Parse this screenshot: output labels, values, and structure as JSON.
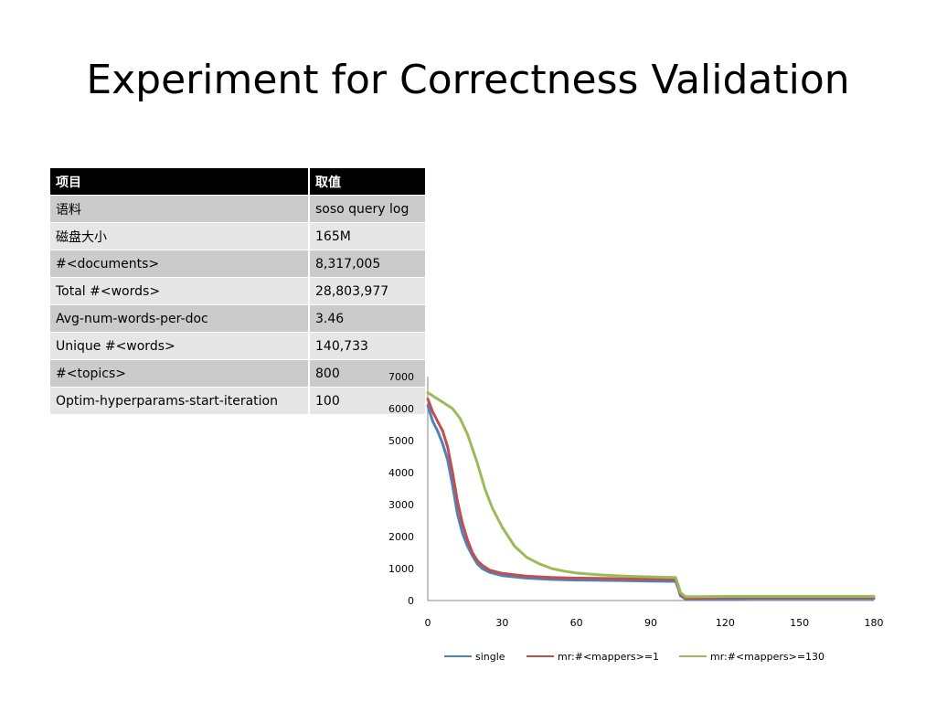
{
  "slide": {
    "title": "Experiment for Correctness Validation"
  },
  "table": {
    "headers": [
      "项目",
      "取值"
    ],
    "rows": [
      [
        "语料",
        "soso query log"
      ],
      [
        "磁盘大小",
        "165M"
      ],
      [
        "#<documents>",
        "8,317,005"
      ],
      [
        "Total #<words>",
        "28,803,977"
      ],
      [
        "Avg-num-words-per-doc",
        "3.46"
      ],
      [
        "Unique #<words>",
        "140,733"
      ],
      [
        "#<topics>",
        "800"
      ],
      [
        "Optim-hyperparams-start-iteration",
        "100"
      ]
    ]
  },
  "chart_data": {
    "type": "line",
    "title": "",
    "xlabel": "",
    "ylabel": "",
    "xlim": [
      0,
      180
    ],
    "ylim": [
      0,
      7000
    ],
    "xticks": [
      0,
      30,
      60,
      90,
      120,
      150,
      180
    ],
    "yticks": [
      0,
      1000,
      2000,
      3000,
      4000,
      5000,
      6000,
      7000
    ],
    "grid": false,
    "legend_position": "bottom",
    "series": [
      {
        "name": "single",
        "color": "#4f81bd",
        "x": [
          0,
          2,
          4,
          6,
          8,
          10,
          12,
          14,
          16,
          18,
          20,
          22,
          25,
          30,
          40,
          50,
          60,
          70,
          80,
          90,
          100,
          101,
          102,
          104,
          106,
          110,
          120,
          130,
          150,
          180
        ],
        "y": [
          6100,
          5600,
          5300,
          4900,
          4400,
          3600,
          2700,
          2100,
          1700,
          1400,
          1150,
          1000,
          880,
          780,
          700,
          660,
          640,
          630,
          620,
          610,
          600,
          400,
          150,
          50,
          50,
          50,
          50,
          60,
          60,
          60
        ]
      },
      {
        "name": "mr:#<mappers>=1",
        "color": "#c0504d",
        "x": [
          0,
          2,
          4,
          6,
          8,
          10,
          12,
          14,
          16,
          18,
          20,
          22,
          25,
          30,
          40,
          50,
          60,
          70,
          80,
          90,
          100,
          101,
          102,
          104,
          106,
          110,
          120,
          130,
          150,
          180
        ],
        "y": [
          6300,
          5900,
          5600,
          5300,
          4800,
          4000,
          3100,
          2400,
          1900,
          1500,
          1250,
          1100,
          950,
          850,
          760,
          720,
          700,
          690,
          680,
          670,
          660,
          450,
          200,
          80,
          80,
          80,
          100,
          100,
          100,
          100
        ]
      },
      {
        "name": "mr:#<mappers>=130",
        "color": "#9bbb59",
        "x": [
          0,
          3,
          6,
          10,
          13,
          16,
          20,
          23,
          26,
          30,
          35,
          40,
          45,
          50,
          55,
          60,
          70,
          80,
          90,
          100,
          101,
          102,
          104,
          106,
          110,
          120,
          130,
          150,
          180
        ],
        "y": [
          6500,
          6350,
          6200,
          6000,
          5700,
          5200,
          4300,
          3500,
          2900,
          2300,
          1700,
          1350,
          1150,
          1000,
          920,
          860,
          800,
          760,
          740,
          720,
          500,
          250,
          120,
          120,
          120,
          130,
          130,
          130,
          130
        ]
      }
    ]
  }
}
